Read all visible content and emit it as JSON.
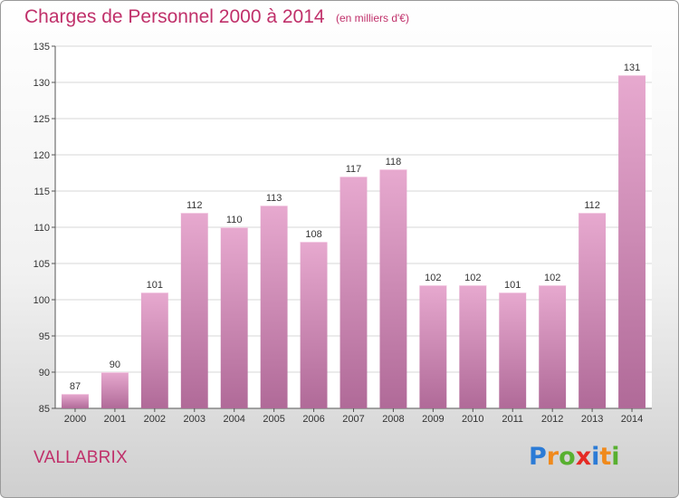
{
  "header": {
    "title": "Charges de Personnel 2000 à 2014",
    "unit_note": "(en milliers d'€)"
  },
  "footer": {
    "commune": "VALLABRIX",
    "logo_letters": [
      {
        "ch": "P",
        "color": "#2b7bd6"
      },
      {
        "ch": "r",
        "color": "#f08a1c"
      },
      {
        "ch": "o",
        "color": "#58b030"
      },
      {
        "ch": "x",
        "color": "#e52a24"
      },
      {
        "ch": "i",
        "color": "#2b7bd6"
      },
      {
        "ch": "t",
        "color": "#f08a1c"
      },
      {
        "ch": "i",
        "color": "#58b030"
      }
    ]
  },
  "colors": {
    "bar_top": "#e7a9cf",
    "bar_bottom": "#b06a98",
    "accent": "#c0306a",
    "grid": "#d7d7d7",
    "plot_bg": "#ffffff"
  },
  "chart_data": {
    "type": "bar",
    "title": "Charges de Personnel 2000 à 2014",
    "subtitle": "(en milliers d'€)",
    "xlabel": "",
    "ylabel": "",
    "categories": [
      "2000",
      "2001",
      "2002",
      "2003",
      "2004",
      "2005",
      "2006",
      "2007",
      "2008",
      "2009",
      "2010",
      "2011",
      "2012",
      "2013",
      "2014"
    ],
    "values": [
      87,
      90,
      101,
      112,
      110,
      113,
      108,
      117,
      118,
      102,
      102,
      101,
      102,
      112,
      131
    ],
    "ylim": [
      85,
      135
    ],
    "yticks": [
      85,
      90,
      95,
      100,
      105,
      110,
      115,
      120,
      125,
      130,
      135
    ],
    "grid": true,
    "data_labels": true
  }
}
